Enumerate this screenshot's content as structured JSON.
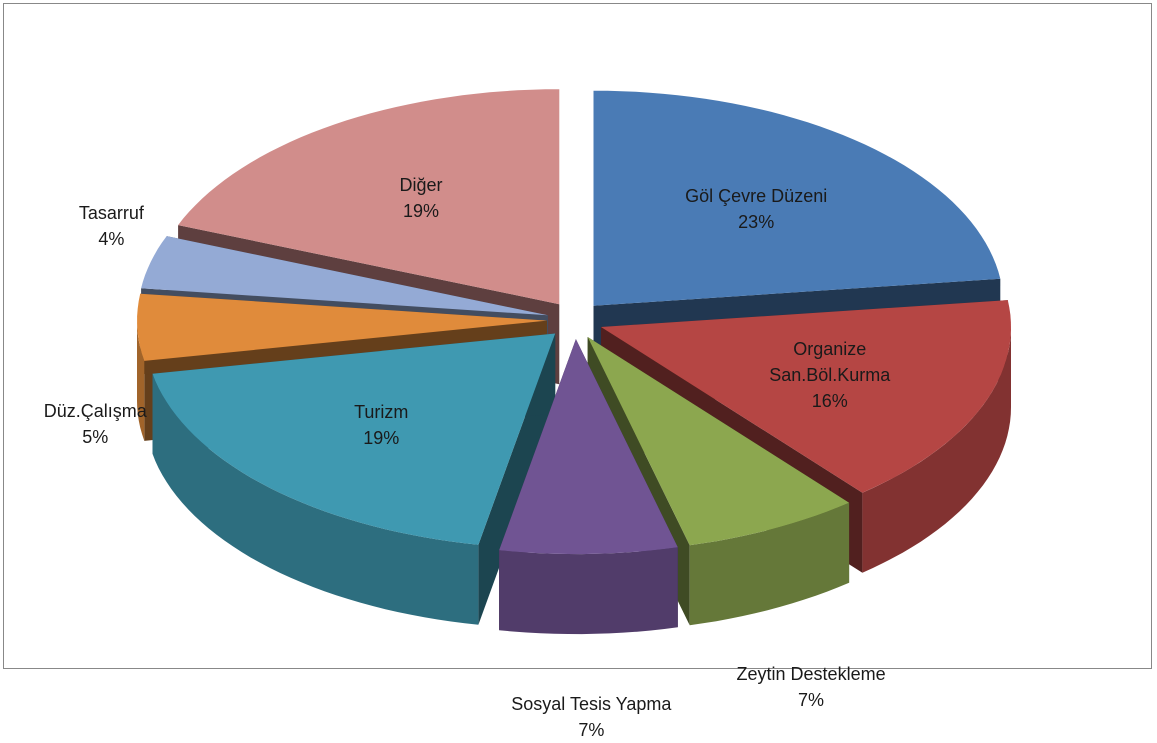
{
  "chart_data": {
    "type": "pie3d",
    "categories": [
      "Göl Çevre Düzeni",
      "Organize San.Böl.Kurma",
      "Zeytin Destekleme",
      "Sosyal Tesis Yapma",
      "Turizm",
      "Düz.Çalışma",
      "Tasarruf",
      "Diğer"
    ],
    "values": [
      23,
      16,
      7,
      7,
      19,
      5,
      4,
      19
    ],
    "value_labels": [
      "23%",
      "16%",
      "7%",
      "7%",
      "19%",
      "5%",
      "4%",
      "19%"
    ],
    "colors": [
      "#4a7bb5",
      "#b54644",
      "#8ca74f",
      "#705493",
      "#3f99b1",
      "#e08b3b",
      "#94aad5",
      "#d18d8b"
    ]
  }
}
